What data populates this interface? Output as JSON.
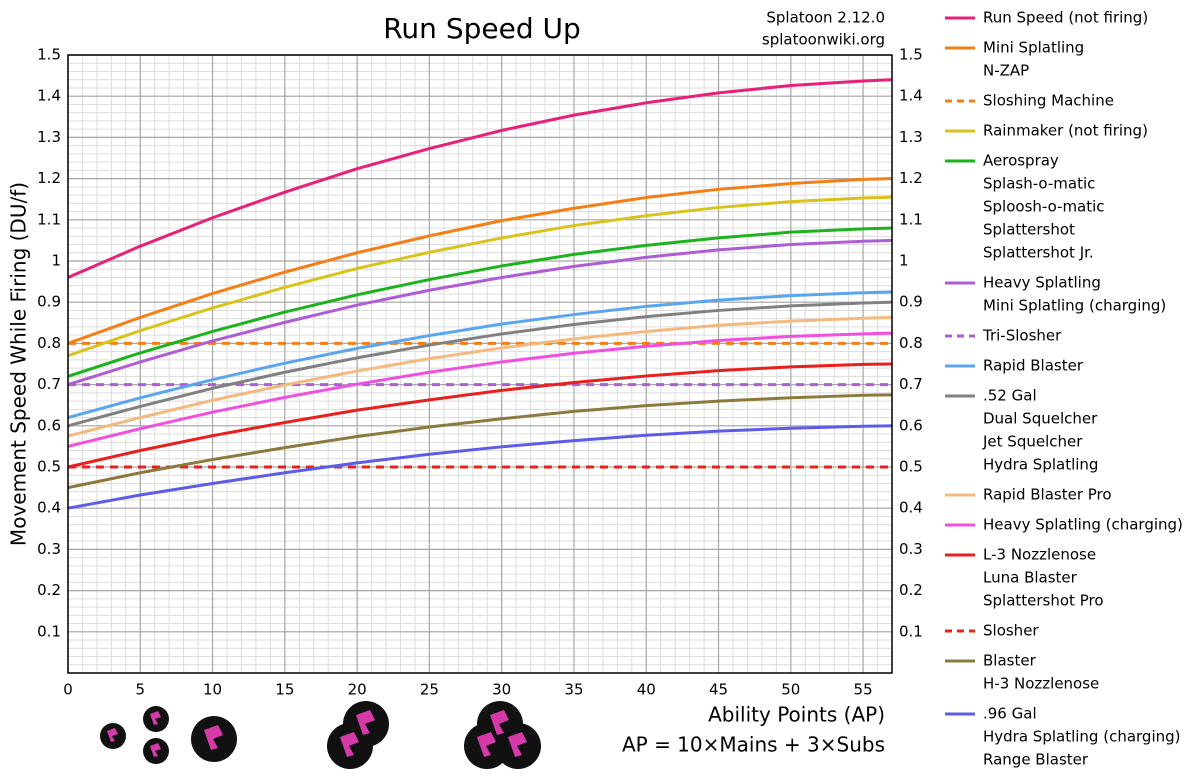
{
  "chart_data": {
    "type": "line",
    "title": "Run Speed Up",
    "annotations": [
      "Splatoon 2.12.0",
      "splatoonwiki.org"
    ],
    "y_label": "Movement Speed While Firing (DU/f)",
    "x_label": "Ability Points (AP)",
    "x_note": "AP = 10×Mains + 3×Subs",
    "x": [
      0,
      5,
      10,
      15,
      20,
      25,
      30,
      35,
      40,
      45,
      50,
      55,
      57
    ],
    "xlim": [
      0,
      57
    ],
    "xticks": [
      0,
      5,
      10,
      15,
      20,
      25,
      30,
      35,
      40,
      45,
      50,
      55
    ],
    "ylim": [
      0,
      1.5
    ],
    "yticks": [
      0.1,
      0.2,
      0.3,
      0.4,
      0.5,
      0.6,
      0.7,
      0.8,
      0.9,
      1.0,
      1.1,
      1.2,
      1.3,
      1.4,
      1.5
    ],
    "grid": true,
    "minor_grid": true,
    "legend": "right",
    "series": [
      {
        "name": [
          "Run Speed (not firing)"
        ],
        "color": "#e8207a",
        "dashed": false,
        "values": [
          0.96,
          1.036,
          1.105,
          1.167,
          1.224,
          1.273,
          1.317,
          1.354,
          1.384,
          1.408,
          1.426,
          1.437,
          1.44
        ]
      },
      {
        "name": [
          "Mini Splatling",
          "N-ZAP"
        ],
        "color": "#f57f17",
        "dashed": false,
        "values": [
          0.8,
          0.863,
          0.921,
          0.973,
          1.02,
          1.061,
          1.098,
          1.128,
          1.154,
          1.174,
          1.188,
          1.198,
          1.2
        ]
      },
      {
        "name": [
          "Sloshing Machine"
        ],
        "color": "#f57f17",
        "dashed": true,
        "values": [
          0.8,
          0.8,
          0.8,
          0.8,
          0.8,
          0.8,
          0.8,
          0.8,
          0.8,
          0.8,
          0.8,
          0.8,
          0.8
        ]
      },
      {
        "name": [
          "Rainmaker (not firing)"
        ],
        "color": "#d9c21a",
        "dashed": false,
        "values": [
          0.77,
          0.831,
          0.886,
          0.936,
          0.982,
          1.021,
          1.056,
          1.086,
          1.11,
          1.13,
          1.144,
          1.153,
          1.155
        ]
      },
      {
        "name": [
          "Aerospray",
          "Splash-o-matic",
          "Sploosh-o-matic",
          "Splattershot",
          "Splattershot Jr."
        ],
        "color": "#1db31d",
        "dashed": false,
        "values": [
          0.72,
          0.777,
          0.829,
          0.876,
          0.918,
          0.955,
          0.988,
          1.016,
          1.038,
          1.056,
          1.07,
          1.078,
          1.08
        ]
      },
      {
        "name": [
          "Heavy Splatling",
          "Mini Splatling (charging)"
        ],
        "color": "#b05cd6",
        "dashed": false,
        "values": [
          0.7,
          0.755,
          0.806,
          0.851,
          0.893,
          0.929,
          0.96,
          0.987,
          1.009,
          1.027,
          1.04,
          1.048,
          1.05
        ]
      },
      {
        "name": [
          "Tri-Slosher"
        ],
        "color": "#b05cd6",
        "dashed": true,
        "values": [
          0.7,
          0.7,
          0.7,
          0.7,
          0.7,
          0.7,
          0.7,
          0.7,
          0.7,
          0.7,
          0.7,
          0.7,
          0.7
        ]
      },
      {
        "name": [
          "Rapid Blaster"
        ],
        "color": "#5aa5ef",
        "dashed": false,
        "values": [
          0.62,
          0.668,
          0.712,
          0.752,
          0.788,
          0.819,
          0.847,
          0.87,
          0.89,
          0.905,
          0.916,
          0.923,
          0.925
        ]
      },
      {
        "name": [
          ".52 Gal",
          "Dual Squelcher",
          "Jet Squelcher",
          "Hydra Splatling"
        ],
        "color": "#808080",
        "dashed": false,
        "values": [
          0.6,
          0.647,
          0.691,
          0.73,
          0.765,
          0.796,
          0.823,
          0.846,
          0.865,
          0.88,
          0.891,
          0.898,
          0.9
        ]
      },
      {
        "name": [
          "Rapid Blaster Pro"
        ],
        "color": "#f4b97e",
        "dashed": false,
        "values": [
          0.575,
          0.62,
          0.662,
          0.699,
          0.733,
          0.763,
          0.789,
          0.811,
          0.829,
          0.844,
          0.854,
          0.861,
          0.863
        ]
      },
      {
        "name": [
          "Heavy Splatling (charging)"
        ],
        "color": "#f050e0",
        "dashed": false,
        "values": [
          0.55,
          0.593,
          0.633,
          0.669,
          0.701,
          0.73,
          0.755,
          0.776,
          0.793,
          0.807,
          0.817,
          0.823,
          0.825
        ]
      },
      {
        "name": [
          "L-3 Nozzlenose",
          "Luna Blaster",
          "Splattershot Pro"
        ],
        "color": "#e8201e",
        "dashed": false,
        "values": [
          0.5,
          0.54,
          0.576,
          0.608,
          0.638,
          0.663,
          0.686,
          0.705,
          0.721,
          0.734,
          0.743,
          0.749,
          0.75
        ]
      },
      {
        "name": [
          "Slosher"
        ],
        "color": "#e8201e",
        "dashed": true,
        "values": [
          0.5,
          0.5,
          0.5,
          0.5,
          0.5,
          0.5,
          0.5,
          0.5,
          0.5,
          0.5,
          0.5,
          0.5,
          0.5
        ]
      },
      {
        "name": [
          "Blaster",
          "H-3 Nozzlenose"
        ],
        "color": "#8c7a3c",
        "dashed": false,
        "values": [
          0.45,
          0.486,
          0.518,
          0.547,
          0.574,
          0.597,
          0.617,
          0.635,
          0.649,
          0.66,
          0.668,
          0.674,
          0.675
        ]
      },
      {
        "name": [
          ".96 Gal",
          "Hydra Splatling (charging)",
          "Range Blaster"
        ],
        "color": "#5c5ce8",
        "dashed": false,
        "values": [
          0.4,
          0.432,
          0.46,
          0.486,
          0.51,
          0.531,
          0.549,
          0.564,
          0.577,
          0.587,
          0.594,
          0.599,
          0.6
        ]
      }
    ]
  }
}
